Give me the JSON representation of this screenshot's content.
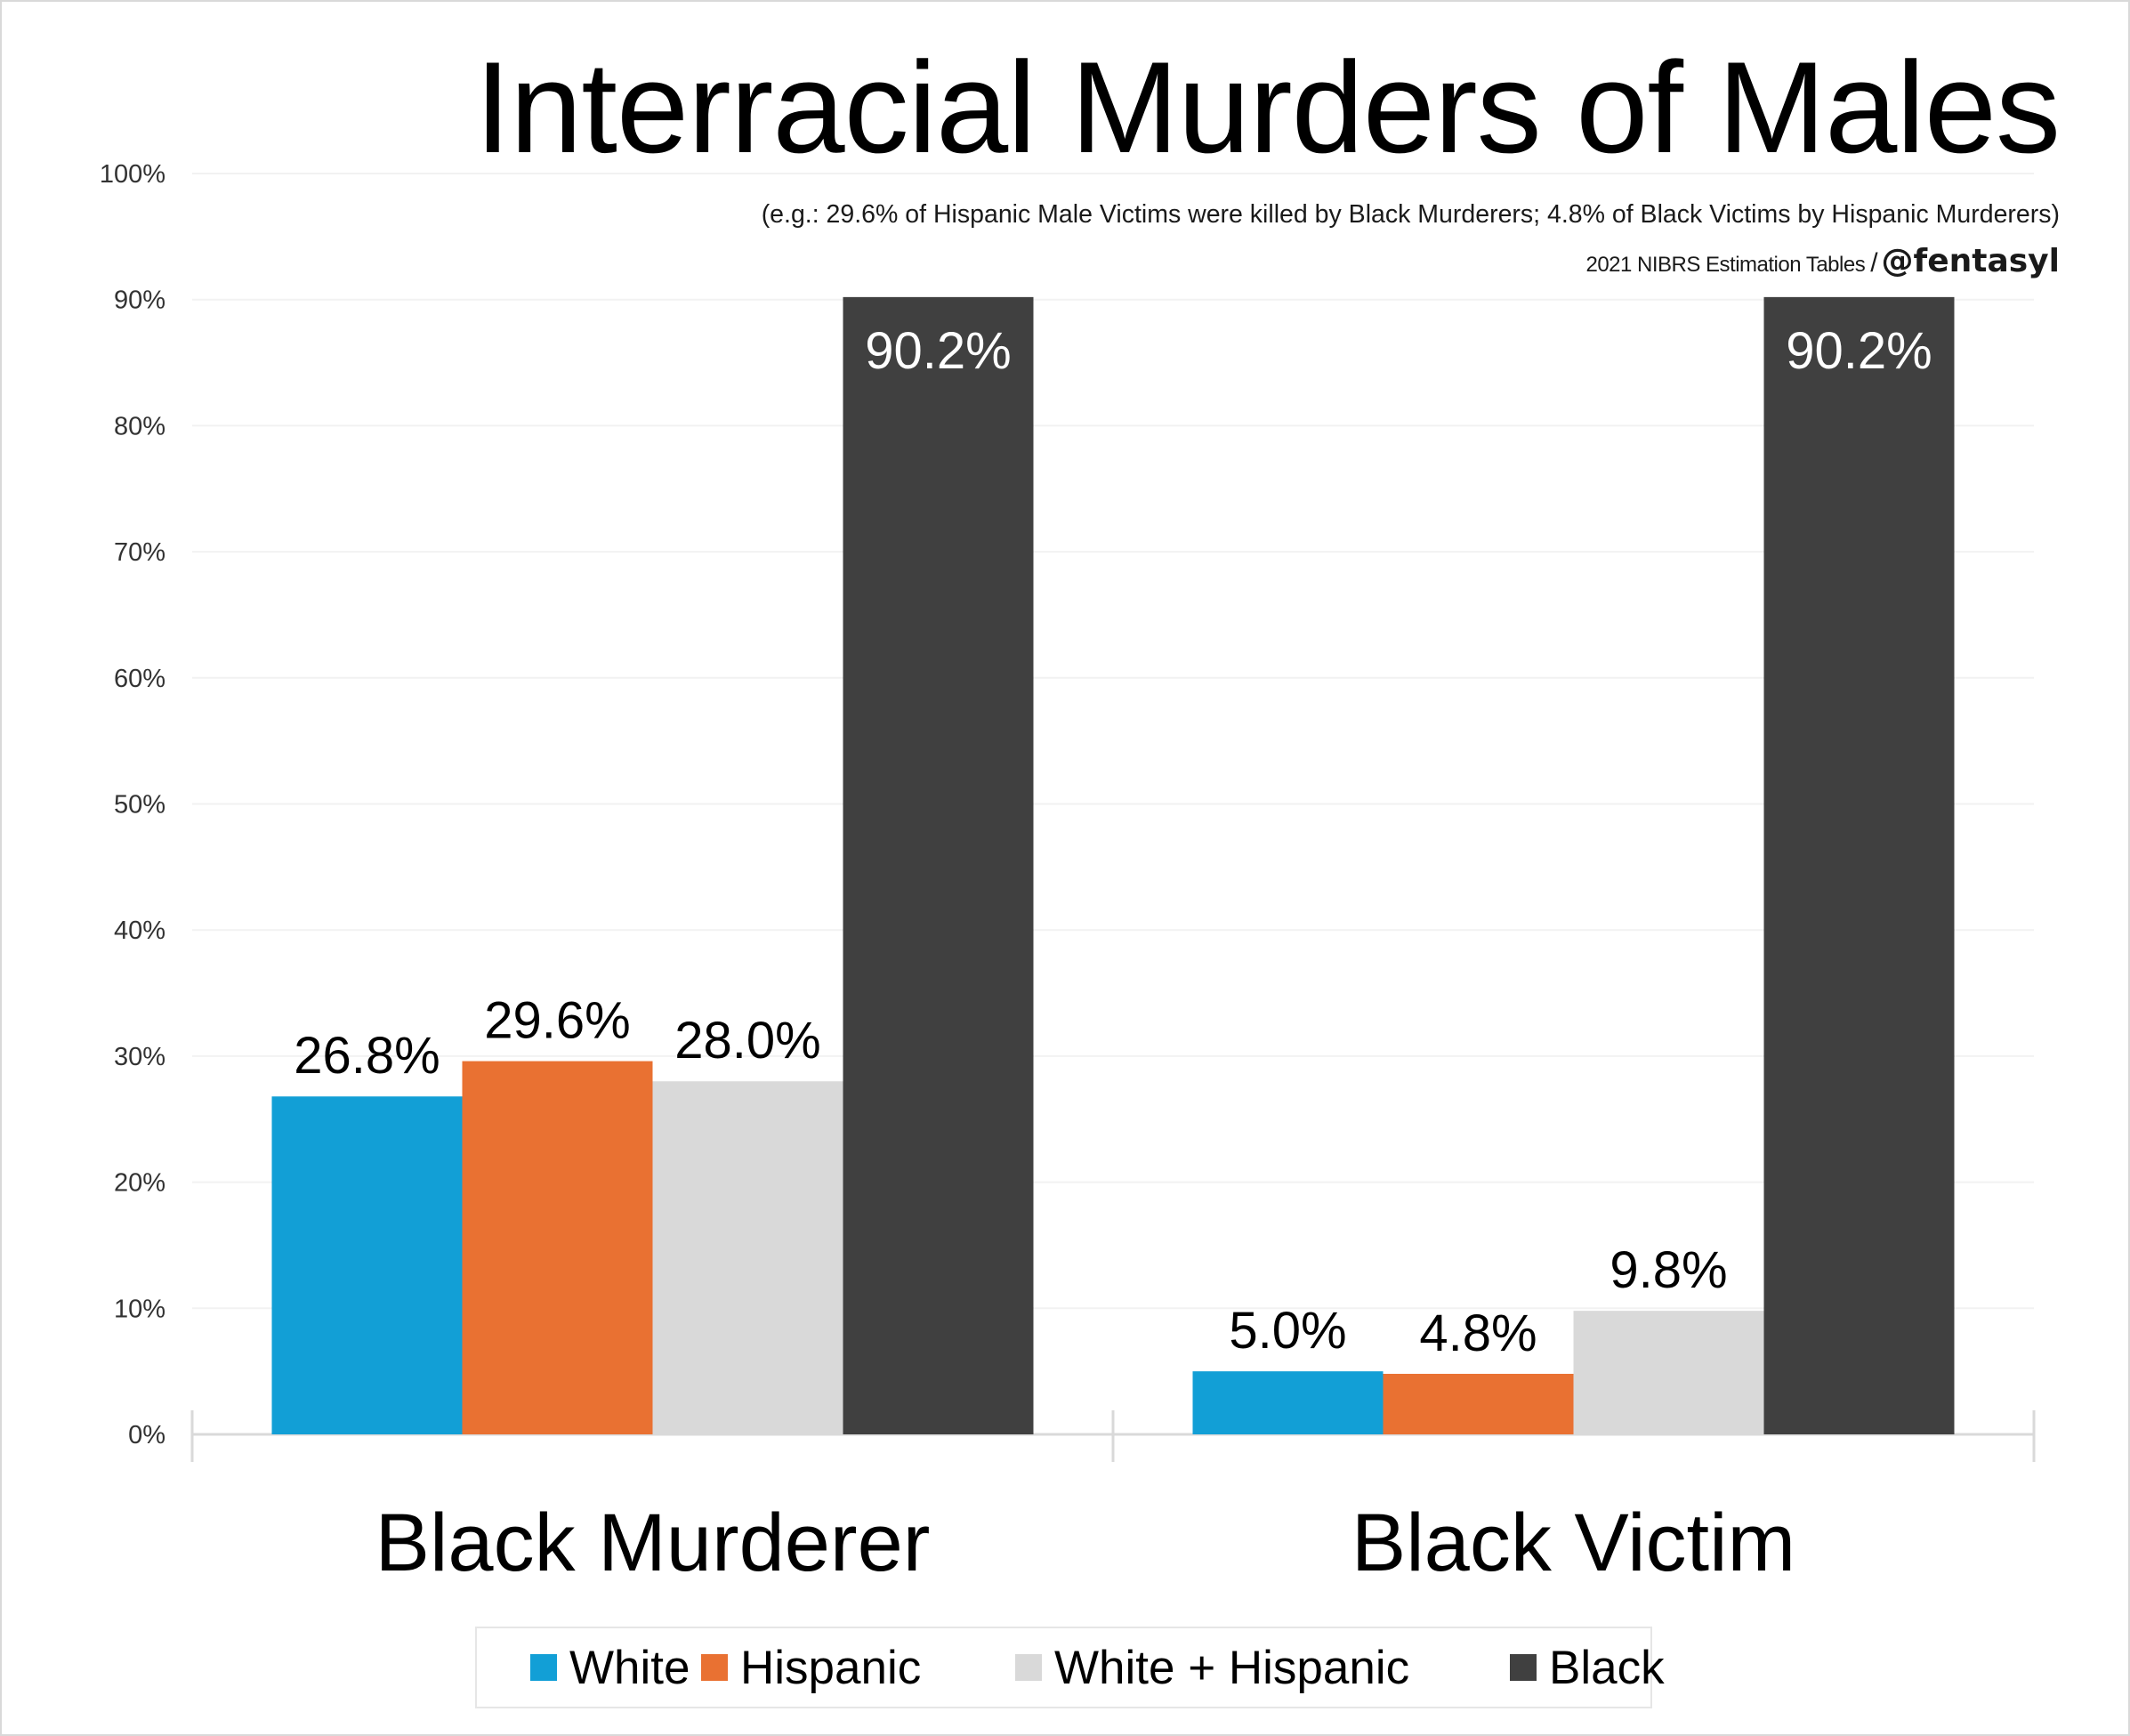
{
  "chart_data": {
    "type": "bar",
    "title": "Interracial Murders of Males",
    "subtitle": "(e.g.: 29.6% of Hispanic Male Victims were killed by Black Murderers; 4.8% of Black Victims by Hispanic Murderers)",
    "source": "2021 NIBRS Estimation Tables",
    "separator": "/",
    "handle": "@fentasyl",
    "categories": [
      "Black Murderer",
      "Black Victim"
    ],
    "series": [
      {
        "name": "White",
        "color": "#129fd6",
        "values": [
          26.8,
          5.0
        ],
        "labels": [
          "26.8%",
          "5.0%"
        ]
      },
      {
        "name": "Hispanic",
        "color": "#e97132",
        "values": [
          29.6,
          4.8
        ],
        "labels": [
          "29.6%",
          "4.8%"
        ]
      },
      {
        "name": "White + Hispanic",
        "color": "#d9d9d9",
        "values": [
          28.0,
          9.8
        ],
        "labels": [
          "28.0%",
          "9.8%"
        ]
      },
      {
        "name": "Black",
        "color": "#404040",
        "values": [
          90.2,
          90.2
        ],
        "labels": [
          "90.2%",
          "90.2%"
        ]
      }
    ],
    "ylim": [
      0,
      100
    ],
    "yticks": [
      0,
      10,
      20,
      30,
      40,
      50,
      60,
      70,
      80,
      90,
      100
    ],
    "ytick_labels": [
      "0%",
      "10%",
      "20%",
      "30%",
      "40%",
      "50%",
      "60%",
      "70%",
      "80%",
      "90%",
      "100%"
    ],
    "grid": true,
    "legend_position": "bottom"
  }
}
